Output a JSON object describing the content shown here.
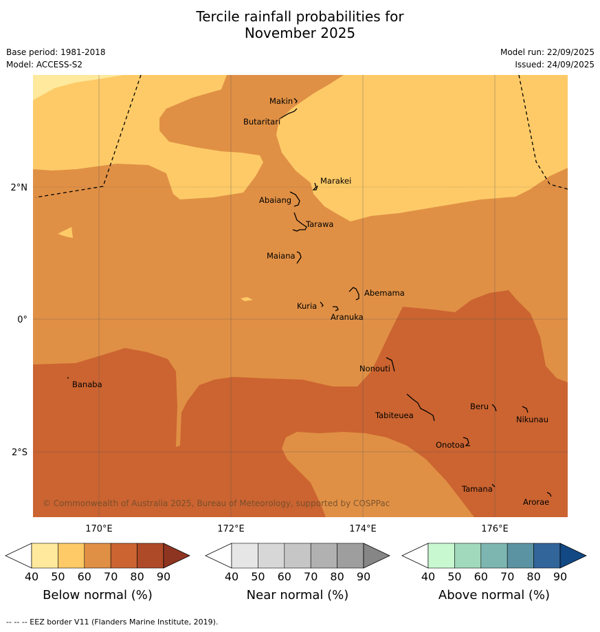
{
  "title": {
    "line1": "Tercile rainfall probabilities for",
    "line2": "November 2025"
  },
  "meta": {
    "base_period": "Base period: 1981-2018",
    "model": "Model: ACCESS-S2",
    "model_run": "Model run: 22/09/2025",
    "issued": "Issued: 24/09/2025"
  },
  "map": {
    "lat_labels": [
      "2°N",
      "0°",
      "2°S"
    ],
    "lon_labels": [
      "170°E",
      "172°E",
      "174°E",
      "176°E"
    ],
    "copyright": "© Commonwealth of Australia 2025, Bureau of Meteorology, supported by COSPPac",
    "islands": [
      "Makin",
      "Butaritari",
      "Marakei",
      "Abaiang",
      "Tarawa",
      "Maiana",
      "Abemama",
      "Kuria",
      "Aranuka",
      "Banaba",
      "Nonouti",
      "Beru",
      "Nikunau",
      "Tabiteuea",
      "Onotoa",
      "Tamana",
      "Arorae"
    ],
    "colors": {
      "b40_50": "#FEE99C",
      "b50_60": "#FDCA67",
      "b60_70": "#E09045",
      "b70_80": "#CB6431",
      "b80_90": "#AF4A29",
      "b90": "#8E3521"
    }
  },
  "colorbars": [
    {
      "label": "Below normal (%)",
      "ticks": [
        "40",
        "50",
        "60",
        "70",
        "80",
        "90"
      ],
      "colors": [
        "#FEE99C",
        "#FDCA67",
        "#E09045",
        "#CB6431",
        "#AF4A29"
      ],
      "extend_low": "#FFFFFF",
      "extend_high": "#8E3521"
    },
    {
      "label": "Near normal (%)",
      "ticks": [
        "40",
        "50",
        "60",
        "70",
        "80",
        "90"
      ],
      "colors": [
        "#E6E6E6",
        "#D7D7D7",
        "#C6C6C6",
        "#B1B1B1",
        "#9E9E9E"
      ],
      "extend_low": "#FFFFFF",
      "extend_high": "#868686"
    },
    {
      "label": "Above normal (%)",
      "ticks": [
        "40",
        "50",
        "60",
        "70",
        "80",
        "90"
      ],
      "colors": [
        "#C8F8D0",
        "#A1D9BC",
        "#7DB6B1",
        "#5C93A2",
        "#32659A"
      ],
      "extend_low": "#FFFFFF",
      "extend_high": "#124884"
    }
  ],
  "footer": "--  --  -- EEZ border V11 (Flanders Marine Institute, 2019)."
}
